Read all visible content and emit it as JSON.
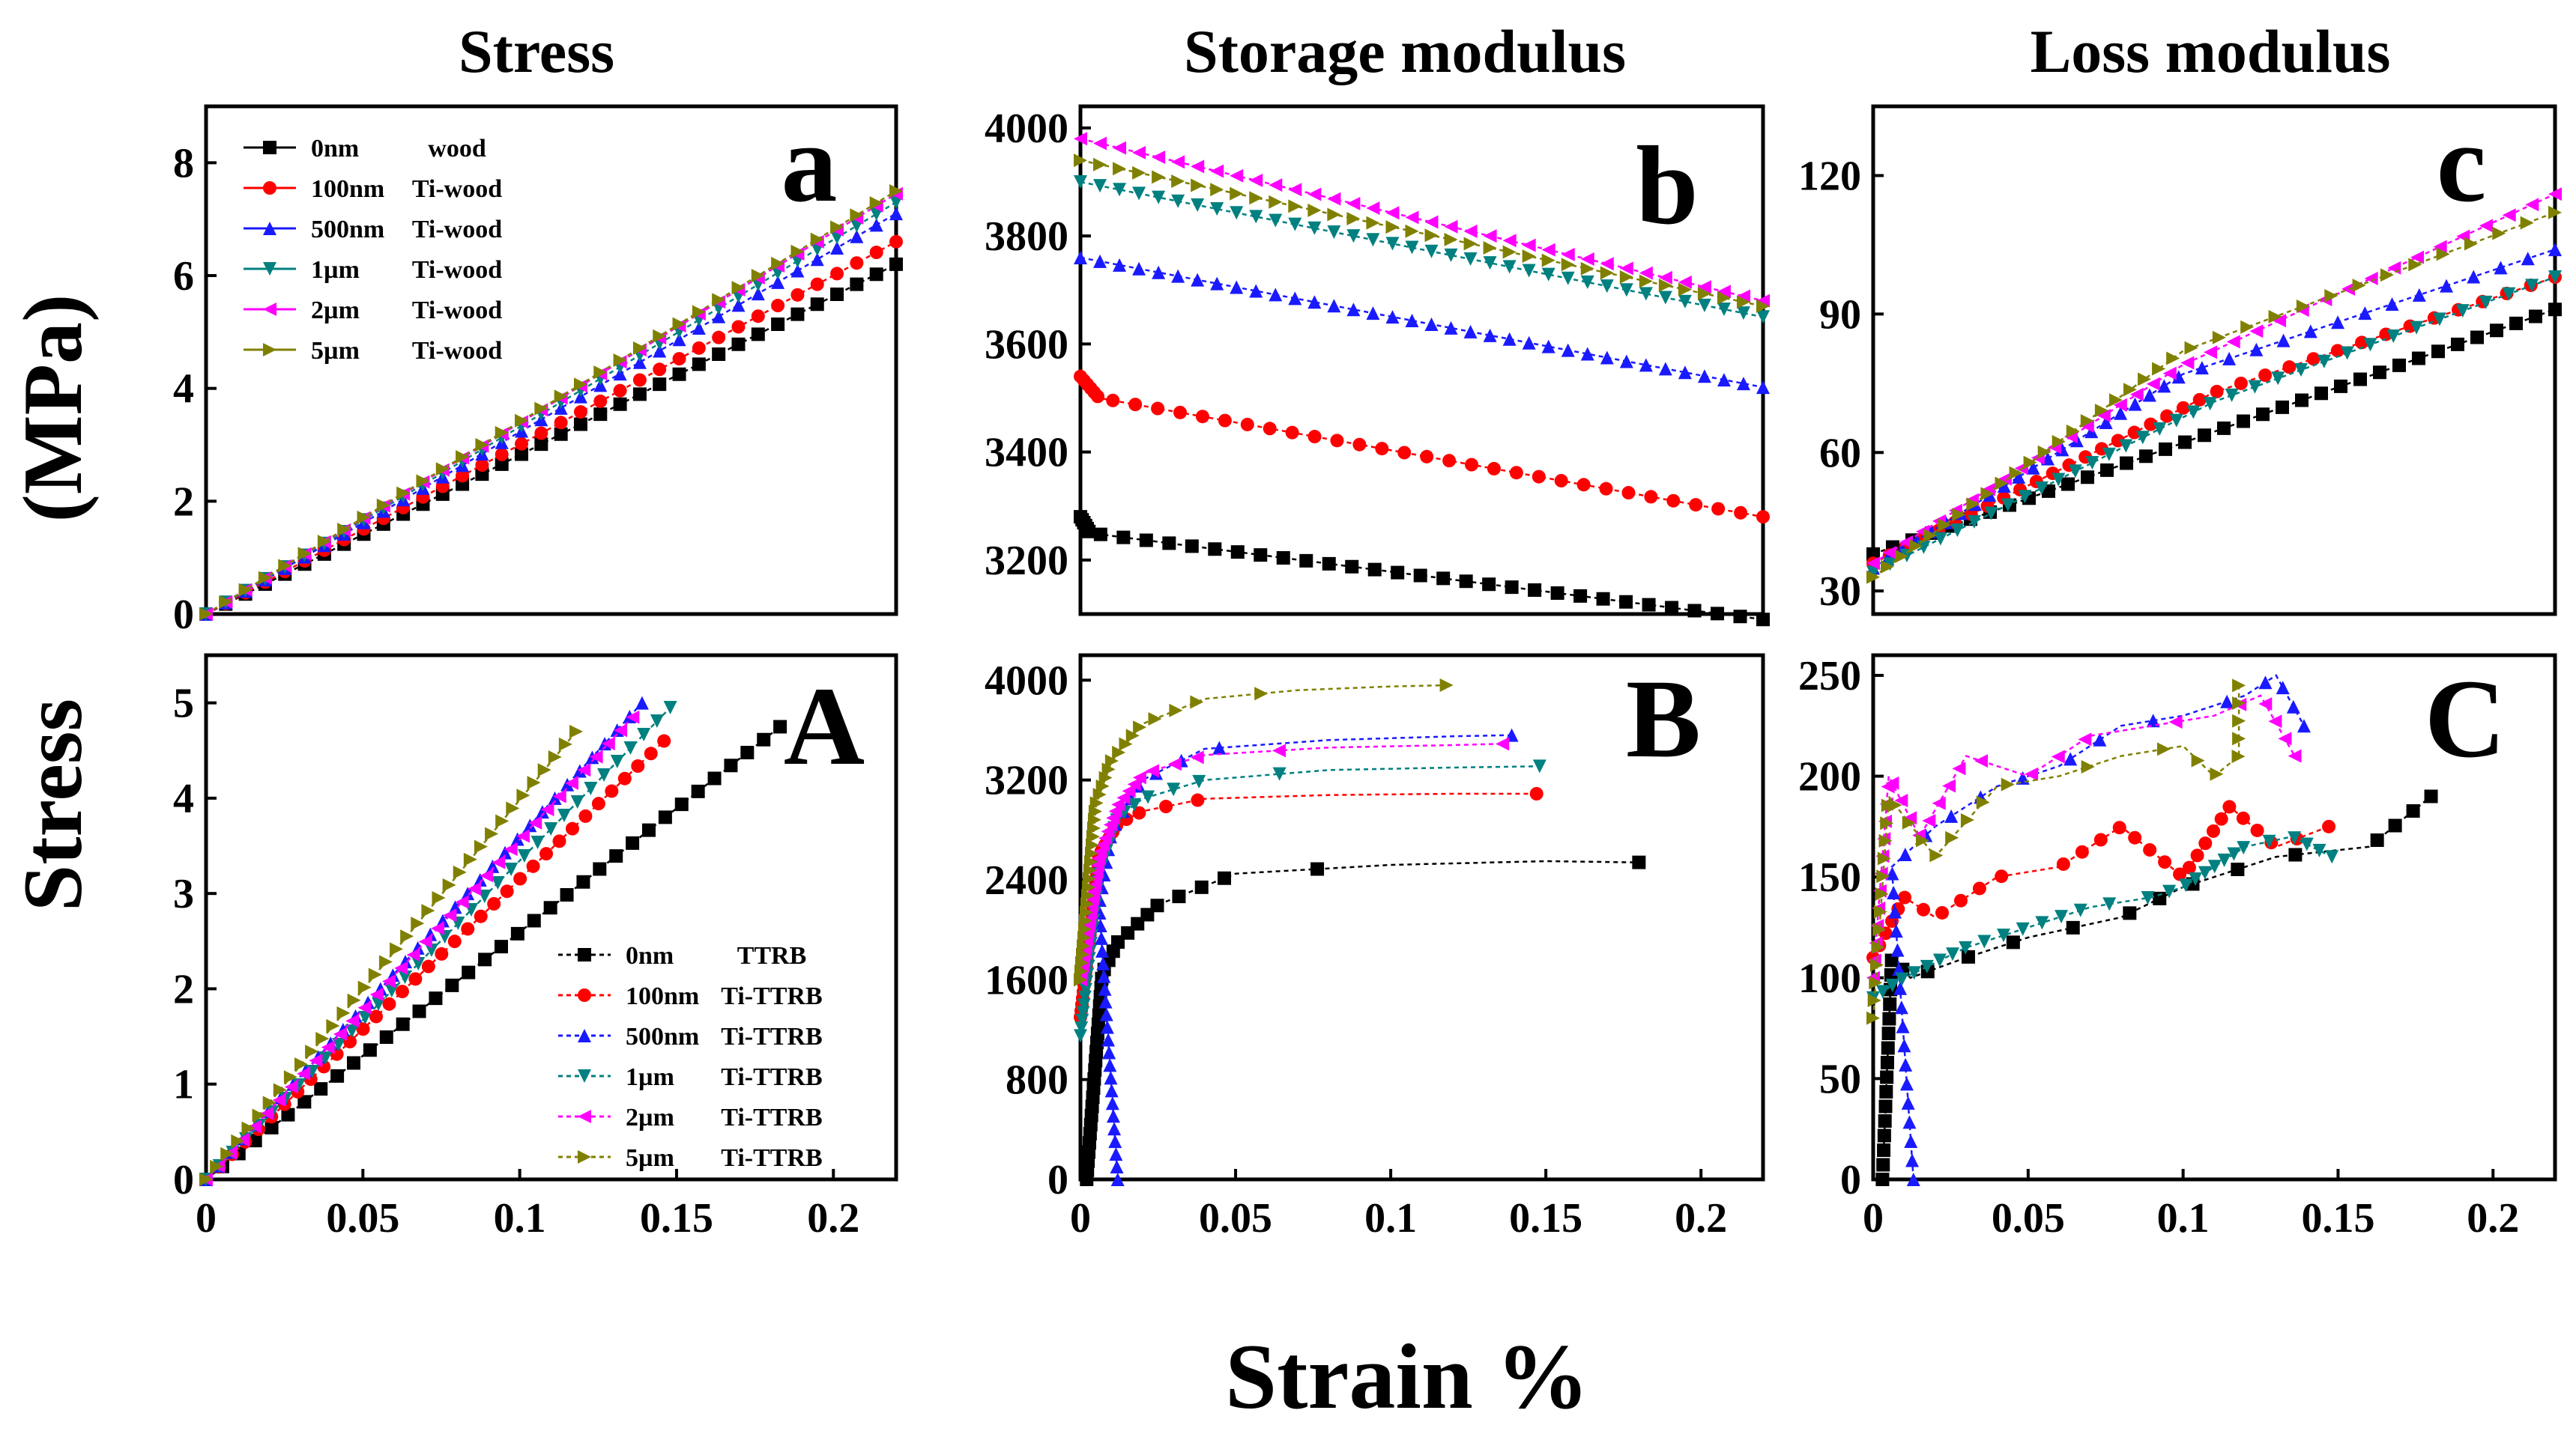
{
  "figure": {
    "column_titles": [
      "Stress",
      "Storage  modulus",
      "Loss  modulus"
    ],
    "y_label_top": "(MPa)",
    "y_label_bottom": "Stress",
    "x_label": "Strain  %"
  },
  "series_styles": [
    {
      "name": "0nm",
      "color": "#000000",
      "marker": "square"
    },
    {
      "name": "100nm",
      "color": "#ff0000",
      "marker": "circle"
    },
    {
      "name": "500nm",
      "color": "#1a1aff",
      "marker": "triangle-up"
    },
    {
      "name": "1µm",
      "color": "#008080",
      "marker": "triangle-down"
    },
    {
      "name": "2µm",
      "color": "#ff00ff",
      "marker": "triangle-left"
    },
    {
      "name": "5µm",
      "color": "#808000",
      "marker": "triangle-right"
    }
  ],
  "chart_data": [
    {
      "id": "a",
      "label": "a",
      "type": "scatter",
      "title": "Stress",
      "xlim": [
        0,
        0.22
      ],
      "ylim": [
        0,
        9
      ],
      "xticks": [],
      "yticks": [
        0,
        2,
        4,
        6,
        8
      ],
      "legend": {
        "position": "top-left",
        "entries": [
          {
            "size": "0nm",
            "material": "wood"
          },
          {
            "size": "100nm",
            "material": "Ti-wood"
          },
          {
            "size": "500nm",
            "material": "Ti-wood"
          },
          {
            "size": "1µm",
            "material": "Ti-wood"
          },
          {
            "size": "2µm",
            "material": "Ti-wood"
          },
          {
            "size": "5µm",
            "material": "Ti-wood"
          }
        ]
      },
      "series": [
        {
          "name": "0nm",
          "x": [
            0,
            0.22
          ],
          "y": [
            0,
            6.2
          ]
        },
        {
          "name": "100nm",
          "x": [
            0,
            0.22
          ],
          "y": [
            0,
            6.6
          ]
        },
        {
          "name": "500nm",
          "x": [
            0,
            0.22
          ],
          "y": [
            0,
            7.1
          ]
        },
        {
          "name": "1µm",
          "x": [
            0,
            0.22
          ],
          "y": [
            0,
            7.3
          ]
        },
        {
          "name": "2µm",
          "x": [
            0,
            0.22
          ],
          "y": [
            0,
            7.45
          ]
        },
        {
          "name": "5µm",
          "x": [
            0,
            0.22
          ],
          "y": [
            0,
            7.5
          ]
        }
      ]
    },
    {
      "id": "b",
      "label": "b",
      "type": "scatter",
      "title": "Storage  modulus",
      "xlim": [
        0,
        0.22
      ],
      "ylim": [
        3100,
        4040
      ],
      "xticks": [],
      "yticks": [
        3200,
        3400,
        3600,
        3800,
        4000
      ],
      "series": [
        {
          "name": "0nm",
          "x": [
            0,
            0.003,
            0.22
          ],
          "y": [
            3280,
            3250,
            3090
          ]
        },
        {
          "name": "100nm",
          "x": [
            0,
            0.006,
            0.22
          ],
          "y": [
            3540,
            3500,
            3280
          ]
        },
        {
          "name": "500nm",
          "x": [
            0,
            0.22
          ],
          "y": [
            3760,
            3520
          ]
        },
        {
          "name": "1µm",
          "x": [
            0,
            0.22
          ],
          "y": [
            3900,
            3650
          ]
        },
        {
          "name": "2µm",
          "x": [
            0,
            0.22
          ],
          "y": [
            3980,
            3680
          ]
        },
        {
          "name": "5µm",
          "x": [
            0,
            0.22
          ],
          "y": [
            3940,
            3670
          ]
        }
      ]
    },
    {
      "id": "c",
      "label": "c",
      "type": "scatter",
      "title": "Loss  modulus",
      "xlim": [
        0,
        0.22
      ],
      "ylim": [
        25,
        135
      ],
      "xticks": [],
      "yticks": [
        30,
        60,
        90,
        120
      ],
      "series": [
        {
          "name": "0nm",
          "x": [
            0,
            0.22
          ],
          "y": [
            38,
            91
          ]
        },
        {
          "name": "100nm",
          "x": [
            0,
            0.11,
            0.22
          ],
          "y": [
            36,
            73,
            98
          ]
        },
        {
          "name": "500nm",
          "x": [
            0,
            0.1,
            0.22
          ],
          "y": [
            35,
            77,
            104
          ]
        },
        {
          "name": "1µm",
          "x": [
            0,
            0.11,
            0.22
          ],
          "y": [
            34,
            71,
            98
          ]
        },
        {
          "name": "2µm",
          "x": [
            0,
            0.1,
            0.22
          ],
          "y": [
            36,
            79,
            116
          ]
        },
        {
          "name": "5µm",
          "x": [
            0,
            0.1,
            0.22
          ],
          "y": [
            33,
            82,
            112
          ]
        }
      ]
    },
    {
      "id": "A",
      "label": "A",
      "type": "scatter",
      "title": "",
      "xlim": [
        0,
        0.22
      ],
      "ylim": [
        0,
        5.5
      ],
      "xticks": [
        0,
        0.05,
        0.1,
        0.15,
        0.2
      ],
      "yticks": [
        0,
        1,
        2,
        3,
        4,
        5
      ],
      "legend": {
        "position": "bottom-right",
        "entries": [
          {
            "size": "0nm",
            "material": "TTRB"
          },
          {
            "size": "100nm",
            "material": "Ti-TTRB"
          },
          {
            "size": "500nm",
            "material": "Ti-TTRB"
          },
          {
            "size": "1µm",
            "material": "Ti-TTRB"
          },
          {
            "size": "2µm",
            "material": "Ti-TTRB"
          },
          {
            "size": "5µm",
            "material": "Ti-TTRB"
          }
        ]
      },
      "series": [
        {
          "name": "0nm",
          "x": [
            0,
            0.183
          ],
          "y": [
            0,
            4.75
          ]
        },
        {
          "name": "100nm",
          "x": [
            0,
            0.146
          ],
          "y": [
            0,
            4.6
          ]
        },
        {
          "name": "500nm",
          "x": [
            0,
            0.139
          ],
          "y": [
            0,
            5.0
          ]
        },
        {
          "name": "1µm",
          "x": [
            0,
            0.148
          ],
          "y": [
            0,
            4.95
          ]
        },
        {
          "name": "2µm",
          "x": [
            0,
            0.136
          ],
          "y": [
            0,
            4.85
          ]
        },
        {
          "name": "5µm",
          "x": [
            0,
            0.118
          ],
          "y": [
            0,
            4.7
          ]
        }
      ]
    },
    {
      "id": "B",
      "label": "B",
      "type": "scatter",
      "title": "",
      "xlim": [
        0,
        0.22
      ],
      "ylim": [
        0,
        4200
      ],
      "xticks": [
        0,
        0.05,
        0.1,
        0.15,
        0.2
      ],
      "yticks": [
        0,
        800,
        1600,
        2400,
        3200,
        4000
      ],
      "series": [
        {
          "name": "0nm",
          "x": [
            0.002,
            0.007,
            0.012,
            0.025,
            0.05,
            0.1,
            0.15,
            0.18
          ],
          "y": [
            0,
            1650,
            1900,
            2200,
            2450,
            2520,
            2550,
            2540
          ]
        },
        {
          "name": "100nm",
          "x": [
            0,
            0.006,
            0.012,
            0.02,
            0.04,
            0.08,
            0.12,
            0.147
          ],
          "y": [
            1300,
            2600,
            2850,
            2950,
            3050,
            3080,
            3090,
            3090
          ]
        },
        {
          "name": "500nm",
          "x": [
            0.012,
            0.006,
            0.01,
            0.02,
            0.04,
            0.08,
            0.12,
            0.139
          ],
          "y": [
            0,
            2200,
            2800,
            3200,
            3450,
            3520,
            3550,
            3560
          ]
        },
        {
          "name": "1µm",
          "x": [
            0,
            0.006,
            0.012,
            0.02,
            0.04,
            0.08,
            0.12,
            0.148
          ],
          "y": [
            1150,
            2450,
            2900,
            3050,
            3200,
            3280,
            3300,
            3310
          ]
        },
        {
          "name": "2µm",
          "x": [
            0,
            0.006,
            0.012,
            0.02,
            0.04,
            0.08,
            0.12,
            0.136
          ],
          "y": [
            1600,
            2600,
            3000,
            3250,
            3400,
            3460,
            3480,
            3490
          ]
        },
        {
          "name": "5µm",
          "x": [
            0,
            0.005,
            0.01,
            0.02,
            0.04,
            0.07,
            0.1,
            0.118
          ],
          "y": [
            1600,
            3000,
            3350,
            3650,
            3850,
            3920,
            3950,
            3960
          ]
        }
      ]
    },
    {
      "id": "C",
      "label": "C",
      "type": "scatter",
      "title": "",
      "xlim": [
        0,
        0.22
      ],
      "ylim": [
        0,
        260
      ],
      "xticks": [
        0,
        0.05,
        0.1,
        0.15,
        0.2
      ],
      "yticks": [
        0,
        50,
        100,
        150,
        200,
        250
      ],
      "series": [
        {
          "name": "0nm",
          "x": [
            0.003,
            0.006,
            0.012,
            0.03,
            0.05,
            0.08,
            0.1,
            0.13,
            0.16,
            0.18
          ],
          "y": [
            0,
            110,
            100,
            110,
            120,
            130,
            145,
            160,
            165,
            190
          ]
        },
        {
          "name": "100nm",
          "x": [
            0,
            0.01,
            0.02,
            0.04,
            0.06,
            0.08,
            0.1,
            0.115,
            0.13,
            0.147
          ],
          "y": [
            110,
            140,
            130,
            150,
            155,
            175,
            150,
            185,
            165,
            175
          ]
        },
        {
          "name": "500nm",
          "x": [
            0.013,
            0.006,
            0.02,
            0.04,
            0.06,
            0.08,
            0.1,
            0.12,
            0.13,
            0.139
          ],
          "y": [
            0,
            155,
            175,
            195,
            205,
            225,
            230,
            240,
            250,
            225
          ]
        },
        {
          "name": "1µm",
          "x": [
            0,
            0.01,
            0.03,
            0.05,
            0.07,
            0.09,
            0.1,
            0.12,
            0.135,
            0.148
          ],
          "y": [
            90,
            100,
            115,
            125,
            135,
            140,
            145,
            165,
            170,
            160
          ]
        },
        {
          "name": "2µm",
          "x": [
            0,
            0.005,
            0.015,
            0.03,
            0.05,
            0.07,
            0.09,
            0.11,
            0.125,
            0.136
          ],
          "y": [
            100,
            200,
            170,
            210,
            200,
            220,
            225,
            230,
            240,
            210
          ]
        },
        {
          "name": "5µm",
          "x": [
            0,
            0.005,
            0.02,
            0.04,
            0.06,
            0.08,
            0.1,
            0.11,
            0.118,
            0.118
          ],
          "y": [
            80,
            190,
            160,
            195,
            200,
            210,
            215,
            200,
            210,
            245
          ]
        }
      ]
    }
  ]
}
